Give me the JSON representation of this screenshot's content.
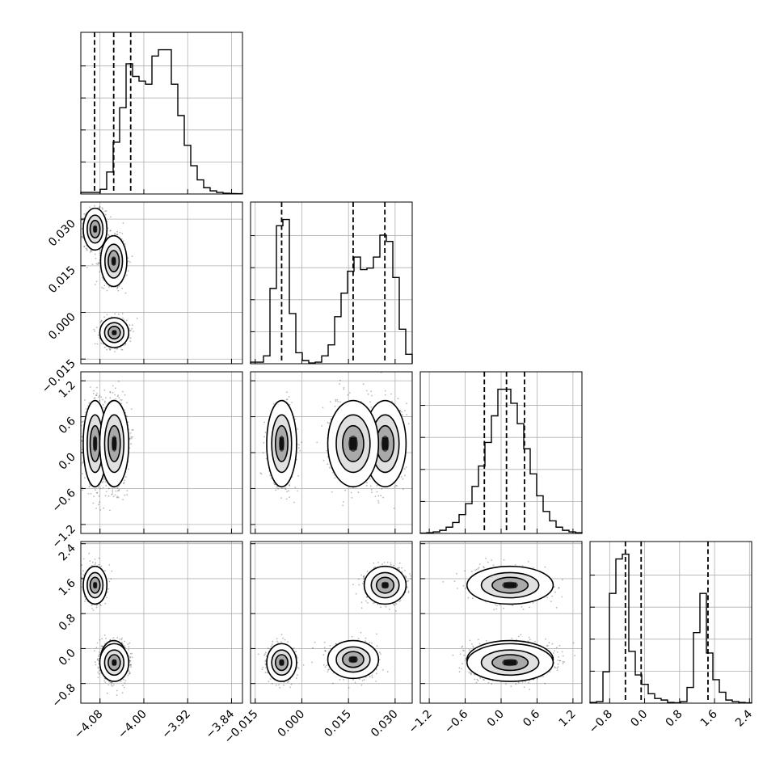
{
  "chart_data": {
    "type": "corner",
    "parameters": [
      {
        "ticks": [
          -4.08,
          -4.0,
          -3.92,
          -3.84
        ],
        "labels": [
          "−4.08",
          "−4.00",
          "−3.92",
          "−3.84"
        ],
        "range": [
          -4.115,
          -3.82
        ]
      },
      {
        "ticks": [
          -0.015,
          0.0,
          0.015,
          0.03
        ],
        "labels": [
          "−0.015",
          "0.000",
          "0.015",
          "0.030"
        ],
        "range": [
          -0.0165,
          0.0355
        ]
      },
      {
        "ticks": [
          -1.2,
          -0.6,
          0.0,
          0.6,
          1.2
        ],
        "labels": [
          "−1.2",
          "−0.6",
          "0.0",
          "0.6",
          "1.2"
        ],
        "range": [
          -1.35,
          1.35
        ]
      },
      {
        "ticks": [
          -0.8,
          0.0,
          0.8,
          1.6,
          2.4
        ],
        "labels": [
          "−0.8",
          "0.0",
          "0.8",
          "1.6",
          "2.4"
        ],
        "range": [
          -1.25,
          2.45
        ]
      }
    ],
    "histograms": [
      {
        "counts": [
          0.01,
          0.01,
          0.01,
          0.03,
          0.14,
          0.33,
          0.55,
          0.83,
          0.75,
          0.72,
          0.7,
          0.88,
          0.92,
          0.92,
          0.7,
          0.5,
          0.31,
          0.18,
          0.09,
          0.04,
          0.02,
          0.01,
          0.005,
          0.003,
          0.002
        ],
        "quantiles": [
          -4.09,
          -4.055,
          -4.024
        ]
      },
      {
        "counts": [
          0.01,
          0.01,
          0.05,
          0.48,
          0.88,
          0.92,
          0.32,
          0.07,
          0.02,
          0.005,
          0.01,
          0.05,
          0.12,
          0.3,
          0.45,
          0.59,
          0.68,
          0.6,
          0.61,
          0.68,
          0.82,
          0.78,
          0.55,
          0.22,
          0.06
        ],
        "quantiles": [
          -0.0065,
          0.0165,
          0.0267
        ]
      },
      {
        "counts": [
          0.002,
          0.005,
          0.01,
          0.02,
          0.04,
          0.07,
          0.12,
          0.19,
          0.3,
          0.43,
          0.58,
          0.75,
          0.92,
          0.92,
          0.83,
          0.7,
          0.54,
          0.38,
          0.24,
          0.14,
          0.08,
          0.04,
          0.02,
          0.01,
          0.005
        ],
        "quantiles": [
          -0.28,
          0.09,
          0.39
        ]
      },
      {
        "counts": [
          0.005,
          0.01,
          0.2,
          0.7,
          0.92,
          0.95,
          0.33,
          0.18,
          0.12,
          0.06,
          0.03,
          0.02,
          0.005,
          0.003,
          0.01,
          0.1,
          0.45,
          0.7,
          0.32,
          0.15,
          0.07,
          0.02,
          0.01,
          0.005,
          0.002
        ],
        "quantiles": [
          -0.44,
          -0.08,
          1.45
        ]
      }
    ],
    "modes": [
      {
        "p0": -4.089,
        "p1": 0.0268,
        "p2": 0.15,
        "p3": 1.45,
        "s0": 0.009,
        "s1": 0.0028,
        "s2": 0.3,
        "s3": 0.18,
        "w": 0.33
      },
      {
        "p0": -4.055,
        "p1": 0.0165,
        "p2": 0.15,
        "p3": -0.25,
        "s0": 0.01,
        "s1": 0.0034,
        "s2": 0.3,
        "s3": 0.18,
        "w": 0.33
      },
      {
        "p0": -4.054,
        "p1": -0.0065,
        "p2": 0.15,
        "p3": -0.32,
        "s0": 0.011,
        "s1": 0.002,
        "s2": 0.3,
        "s3": 0.18,
        "w": 0.33
      }
    ]
  }
}
